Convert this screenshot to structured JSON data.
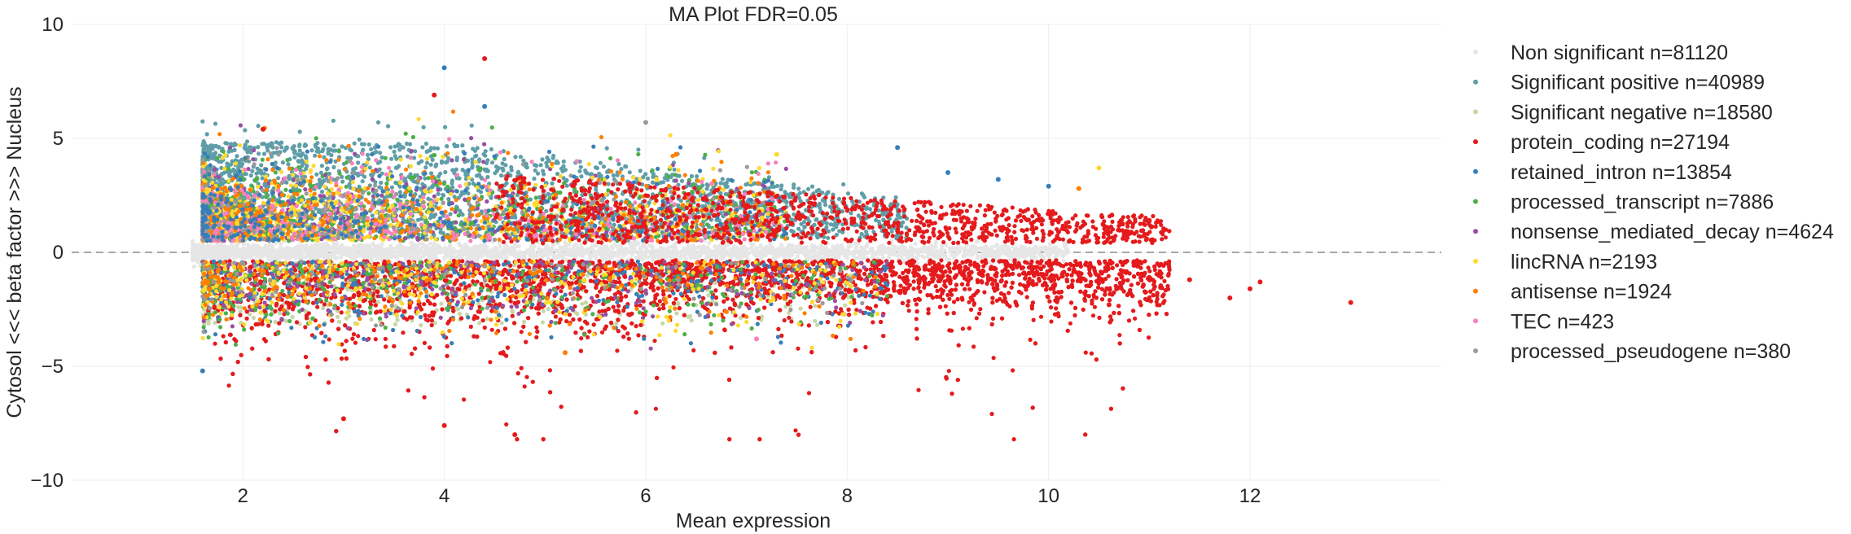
{
  "chart_data": {
    "type": "scatter",
    "title": "MA Plot  FDR=0.05",
    "xlabel": "Mean expression",
    "ylabel": "Cytosol <<< beta factor >>> Nucleus",
    "xlim": [
      0.3,
      13.9
    ],
    "ylim": [
      -10,
      10
    ],
    "xticks": [
      2,
      4,
      6,
      8,
      10,
      12
    ],
    "yticks": [
      10,
      5,
      0,
      -5,
      -10
    ],
    "ytick_labels": [
      "10",
      "5",
      "0",
      "−5",
      "−10"
    ],
    "grid": true,
    "reference_line": {
      "y": 0,
      "style": "dashed",
      "color": "#a8a8a8"
    },
    "legend_position": "right",
    "series": [
      {
        "name": "Non significant  n=81120",
        "color": "#e6e6e6",
        "count": 81120
      },
      {
        "name": "Significant positive n=40989",
        "color": "#5f9ea8",
        "count": 40989
      },
      {
        "name": "Significant negative n=18580",
        "color": "#c7d7a8",
        "count": 18580
      },
      {
        "name": "protein_coding  n=27194",
        "color": "#e41a1c",
        "count": 27194
      },
      {
        "name": "retained_intron  n=13854",
        "color": "#377eb8",
        "count": 13854
      },
      {
        "name": "processed_transcript  n=7886",
        "color": "#4daf4a",
        "count": 7886
      },
      {
        "name": "nonsense_mediated_decay  n=4624",
        "color": "#984ea3",
        "count": 4624
      },
      {
        "name": "lincRNA  n=2193",
        "color": "#ffd92f",
        "count": 2193
      },
      {
        "name": "antisense  n=1924",
        "color": "#ff7f00",
        "count": 1924
      },
      {
        "name": "TEC  n=423",
        "color": "#f781bf",
        "count": 423
      },
      {
        "name": "processed_pseudogene  n=380",
        "color": "#999999",
        "count": 380
      }
    ],
    "sample_points": [
      {
        "series": 3,
        "x": 13.0,
        "y": -2.2
      },
      {
        "series": 3,
        "x": 12.1,
        "y": -1.3
      },
      {
        "series": 3,
        "x": 12.0,
        "y": -1.6
      },
      {
        "series": 3,
        "x": 11.8,
        "y": -2.0
      },
      {
        "series": 3,
        "x": 11.4,
        "y": -1.2
      },
      {
        "series": 3,
        "x": 11.0,
        "y": 1.4
      },
      {
        "series": 3,
        "x": 10.8,
        "y": -1.8
      },
      {
        "series": 3,
        "x": 10.6,
        "y": -2.3
      },
      {
        "series": 3,
        "x": 10.3,
        "y": -1.0
      },
      {
        "series": 3,
        "x": 10.1,
        "y": 0.9
      },
      {
        "series": 3,
        "x": 4.7,
        "y": -8.0
      },
      {
        "series": 3,
        "x": 4.4,
        "y": 8.5
      },
      {
        "series": 3,
        "x": 3.9,
        "y": 6.9
      },
      {
        "series": 3,
        "x": 3.0,
        "y": -7.3
      },
      {
        "series": 3,
        "x": 2.2,
        "y": 5.4
      },
      {
        "series": 3,
        "x": 4.0,
        "y": -7.6
      },
      {
        "series": 4,
        "x": 4.0,
        "y": 8.1
      },
      {
        "series": 4,
        "x": 4.4,
        "y": 6.4
      },
      {
        "series": 4,
        "x": 8.5,
        "y": 4.6
      },
      {
        "series": 4,
        "x": 9.0,
        "y": 3.5
      },
      {
        "series": 4,
        "x": 9.5,
        "y": 3.2
      },
      {
        "series": 4,
        "x": 10.0,
        "y": 2.9
      },
      {
        "series": 4,
        "x": 1.6,
        "y": -5.2
      },
      {
        "series": 7,
        "x": 10.5,
        "y": 3.7
      },
      {
        "series": 7,
        "x": 7.3,
        "y": 4.3
      },
      {
        "series": 8,
        "x": 10.3,
        "y": 2.8
      },
      {
        "series": 8,
        "x": 6.3,
        "y": 4.3
      },
      {
        "series": 8,
        "x": 5.2,
        "y": -4.4
      },
      {
        "series": 9,
        "x": 7.1,
        "y": -3.8
      },
      {
        "series": 10,
        "x": 6.0,
        "y": 5.7
      }
    ]
  }
}
